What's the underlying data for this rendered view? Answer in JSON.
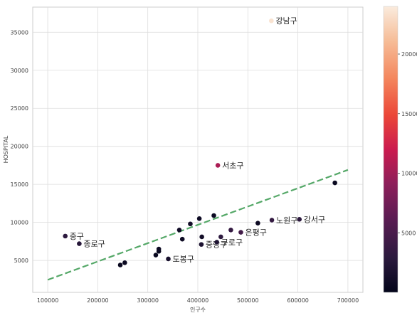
{
  "chart_data": {
    "type": "scatter",
    "title": "",
    "xlabel": "인구수",
    "ylabel": "HOSPITAL",
    "xlim": [
      70000,
      730000
    ],
    "ylim": [
      800,
      38300
    ],
    "x_ticks": [
      100000,
      200000,
      300000,
      400000,
      500000,
      600000,
      700000
    ],
    "y_ticks": [
      5000,
      10000,
      15000,
      20000,
      25000,
      30000,
      35000
    ],
    "grid": true,
    "colorbar": {
      "range": [
        0,
        24000
      ],
      "ticks": [
        5000,
        10000,
        15000,
        20000
      ],
      "tick_labels": [
        "5000",
        "10000",
        "15000",
        "20000"
      ],
      "cmap": "rocket"
    },
    "trend_line": {
      "x": [
        100000,
        700000
      ],
      "y": [
        2450,
        16900
      ],
      "style": "dashed",
      "color": "#55a868"
    },
    "points": [
      {
        "x": 547000,
        "y": 36500,
        "c": 23500,
        "label": "강남구"
      },
      {
        "x": 440000,
        "y": 17500,
        "c": 10500,
        "label": "서초구"
      },
      {
        "x": 135000,
        "y": 8200,
        "c": 3000,
        "label": "중구"
      },
      {
        "x": 163000,
        "y": 7200,
        "c": 2500,
        "label": "종로구"
      },
      {
        "x": 341000,
        "y": 5200,
        "c": 1500,
        "label": "도봉구"
      },
      {
        "x": 407000,
        "y": 7100,
        "c": 1800,
        "label": "중랑구"
      },
      {
        "x": 438000,
        "y": 7400,
        "c": 2000,
        "label": "구로구"
      },
      {
        "x": 486000,
        "y": 8700,
        "c": 4500,
        "label": "은평구"
      },
      {
        "x": 548000,
        "y": 10300,
        "c": 3500,
        "label": "노원구"
      },
      {
        "x": 603000,
        "y": 10400,
        "c": 3000,
        "label": "강서구"
      },
      {
        "x": 674000,
        "y": 15200,
        "c": 500,
        "label": ""
      },
      {
        "x": 245000,
        "y": 4400,
        "c": 500,
        "label": ""
      },
      {
        "x": 254000,
        "y": 4700,
        "c": 500,
        "label": ""
      },
      {
        "x": 316000,
        "y": 5700,
        "c": 500,
        "label": ""
      },
      {
        "x": 322000,
        "y": 6200,
        "c": 500,
        "label": ""
      },
      {
        "x": 322000,
        "y": 6500,
        "c": 800,
        "label": ""
      },
      {
        "x": 363000,
        "y": 9000,
        "c": 1000,
        "label": ""
      },
      {
        "x": 369000,
        "y": 7800,
        "c": 800,
        "label": ""
      },
      {
        "x": 385000,
        "y": 9800,
        "c": 1200,
        "label": ""
      },
      {
        "x": 403000,
        "y": 10500,
        "c": 800,
        "label": ""
      },
      {
        "x": 408000,
        "y": 8100,
        "c": 1200,
        "label": ""
      },
      {
        "x": 432000,
        "y": 10900,
        "c": 600,
        "label": ""
      },
      {
        "x": 446000,
        "y": 8100,
        "c": 3000,
        "label": ""
      },
      {
        "x": 466000,
        "y": 9000,
        "c": 3500,
        "label": ""
      },
      {
        "x": 520000,
        "y": 9900,
        "c": 800,
        "label": ""
      }
    ]
  }
}
